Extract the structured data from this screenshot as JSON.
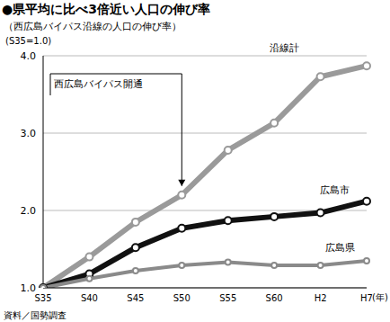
{
  "chart_data": {
    "type": "line",
    "title": "●県平均に比べ3倍近い人口の伸び率",
    "subtitle": "（西広島バイパス沿線の人口の伸び率）",
    "y_label": "(S35=1.0)",
    "x_label": "(年)",
    "source": "資料／国勢調査",
    "categories": [
      "S35",
      "S40",
      "S45",
      "S50",
      "S55",
      "S60",
      "H2",
      "H7"
    ],
    "series": [
      {
        "name": "沿線計",
        "color": "#9a9a9a",
        "marker": "circle",
        "values": [
          1.0,
          1.4,
          1.85,
          2.2,
          2.78,
          3.13,
          3.73,
          3.87
        ]
      },
      {
        "name": "広島市",
        "color": "#111111",
        "marker": "circle",
        "values": [
          1.0,
          1.18,
          1.52,
          1.77,
          1.87,
          1.92,
          1.97,
          2.12
        ]
      },
      {
        "name": "広島県",
        "color": "#8a8a8a",
        "marker": "circle",
        "values": [
          1.0,
          1.12,
          1.22,
          1.29,
          1.33,
          1.29,
          1.29,
          1.35
        ]
      }
    ],
    "ylim": [
      1,
      4
    ],
    "yticks": [
      {
        "value": 1,
        "label": "1.0"
      },
      {
        "value": 2,
        "label": "2.0"
      },
      {
        "value": 3,
        "label": "3.0"
      },
      {
        "value": 4,
        "label": "4.0"
      }
    ],
    "grid": true,
    "annotations": [
      {
        "text": "西広島バイパス開通",
        "x": "S50"
      }
    ]
  }
}
